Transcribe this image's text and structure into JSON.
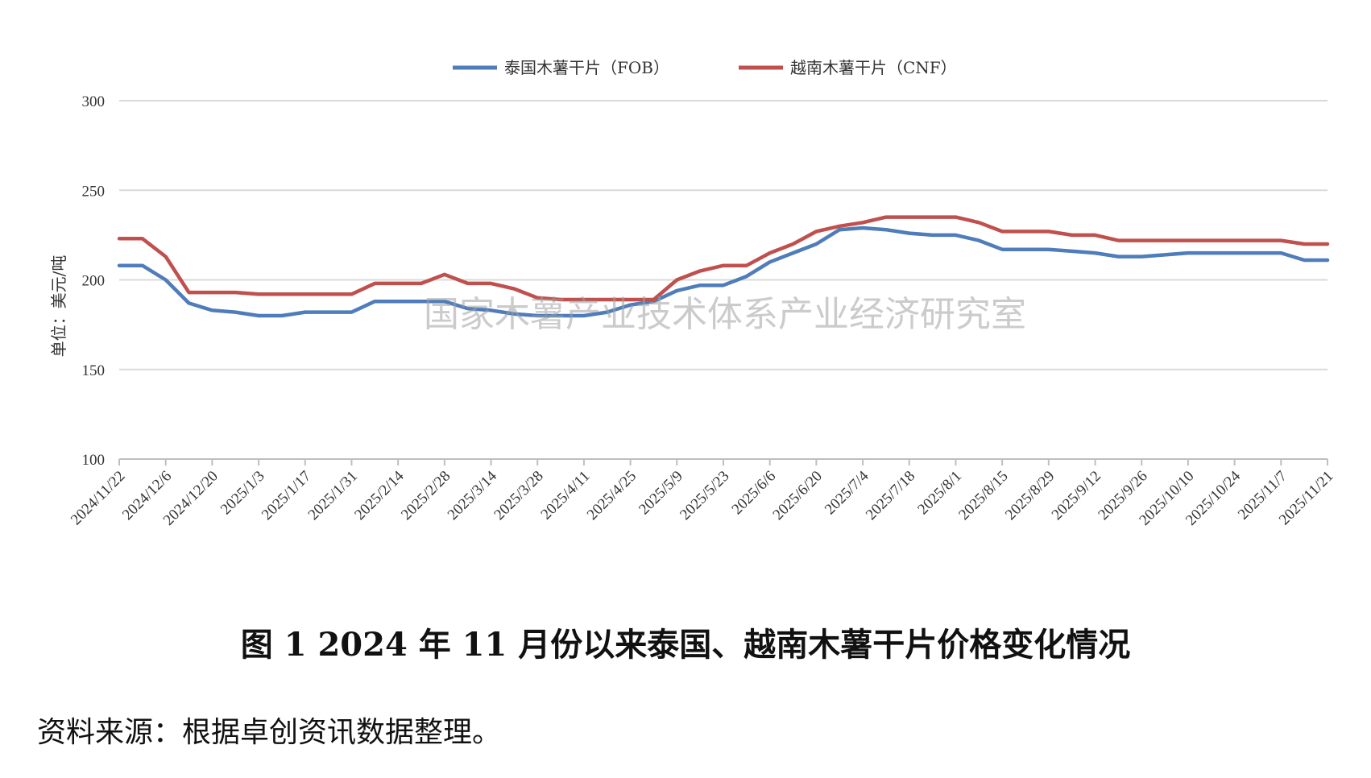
{
  "chart_data": {
    "type": "line",
    "title": "",
    "ylabel": "单位：美元/吨",
    "xlabel": "",
    "ylim": [
      100,
      300
    ],
    "yticks": [
      100,
      150,
      200,
      250,
      300
    ],
    "grid": true,
    "legend_position": "top",
    "x": [
      "2024/11/22",
      "2024/11/29",
      "2024/12/6",
      "2024/12/13",
      "2024/12/20",
      "2024/12/27",
      "2025/1/3",
      "2025/1/10",
      "2025/1/17",
      "2025/1/24",
      "2025/1/31",
      "2025/2/7",
      "2025/2/14",
      "2025/2/21",
      "2025/2/28",
      "2025/3/7",
      "2025/3/14",
      "2025/3/21",
      "2025/3/28",
      "2025/4/4",
      "2025/4/11",
      "2025/4/18",
      "2025/4/25",
      "2025/5/2",
      "2025/5/9",
      "2025/5/16",
      "2025/5/23",
      "2025/5/30",
      "2025/6/6",
      "2025/6/13",
      "2025/6/20",
      "2025/6/27",
      "2025/7/4",
      "2025/7/11",
      "2025/7/18",
      "2025/7/25",
      "2025/8/1",
      "2025/8/8",
      "2025/8/15",
      "2025/8/22",
      "2025/8/29",
      "2025/9/5",
      "2025/9/12",
      "2025/9/19",
      "2025/9/26",
      "2025/10/3",
      "2025/10/10",
      "2025/10/17",
      "2025/10/24",
      "2025/10/31",
      "2025/11/7",
      "2025/11/14",
      "2025/11/21"
    ],
    "x_tick_labels": [
      "2024/11/22",
      "2024/12/6",
      "2024/12/20",
      "2025/1/3",
      "2025/1/17",
      "2025/1/31",
      "2025/2/14",
      "2025/2/28",
      "2025/3/14",
      "2025/3/28",
      "2025/4/11",
      "2025/4/25",
      "2025/5/9",
      "2025/5/23",
      "2025/6/6",
      "2025/6/20",
      "2025/7/4",
      "2025/7/18",
      "2025/8/1",
      "2025/8/15",
      "2025/8/29",
      "2025/9/12",
      "2025/9/26",
      "2025/10/10",
      "2025/10/24",
      "2025/11/7",
      "2025/11/21"
    ],
    "series": [
      {
        "name": "泰国木薯干片（FOB）",
        "color": "#4f7cba",
        "values": [
          208,
          208,
          200,
          187,
          183,
          182,
          180,
          180,
          182,
          182,
          182,
          188,
          188,
          188,
          188,
          184,
          183,
          181,
          180,
          180,
          180,
          182,
          186,
          188,
          194,
          197,
          197,
          202,
          210,
          215,
          220,
          228,
          229,
          228,
          226,
          225,
          225,
          222,
          217,
          217,
          217,
          216,
          215,
          213,
          213,
          214,
          215,
          215,
          215,
          215,
          215,
          211,
          211
        ]
      },
      {
        "name": "越南木薯干片（CNF）",
        "color": "#c0504d",
        "values": [
          223,
          223,
          213,
          193,
          193,
          193,
          192,
          192,
          192,
          192,
          192,
          198,
          198,
          198,
          203,
          198,
          198,
          195,
          190,
          189,
          189,
          189,
          189,
          189,
          200,
          205,
          208,
          208,
          215,
          220,
          227,
          230,
          232,
          235,
          235,
          235,
          235,
          232,
          227,
          227,
          227,
          225,
          225,
          222,
          222,
          222,
          222,
          222,
          222,
          222,
          222,
          220,
          220
        ]
      }
    ]
  },
  "watermark": "国家木薯产业技术体系产业经济研究室",
  "figure_title": "图 1    2024 年 11 月份以来泰国、越南木薯干片价格变化情况",
  "source_note": "资料来源：根据卓创资讯数据整理。"
}
